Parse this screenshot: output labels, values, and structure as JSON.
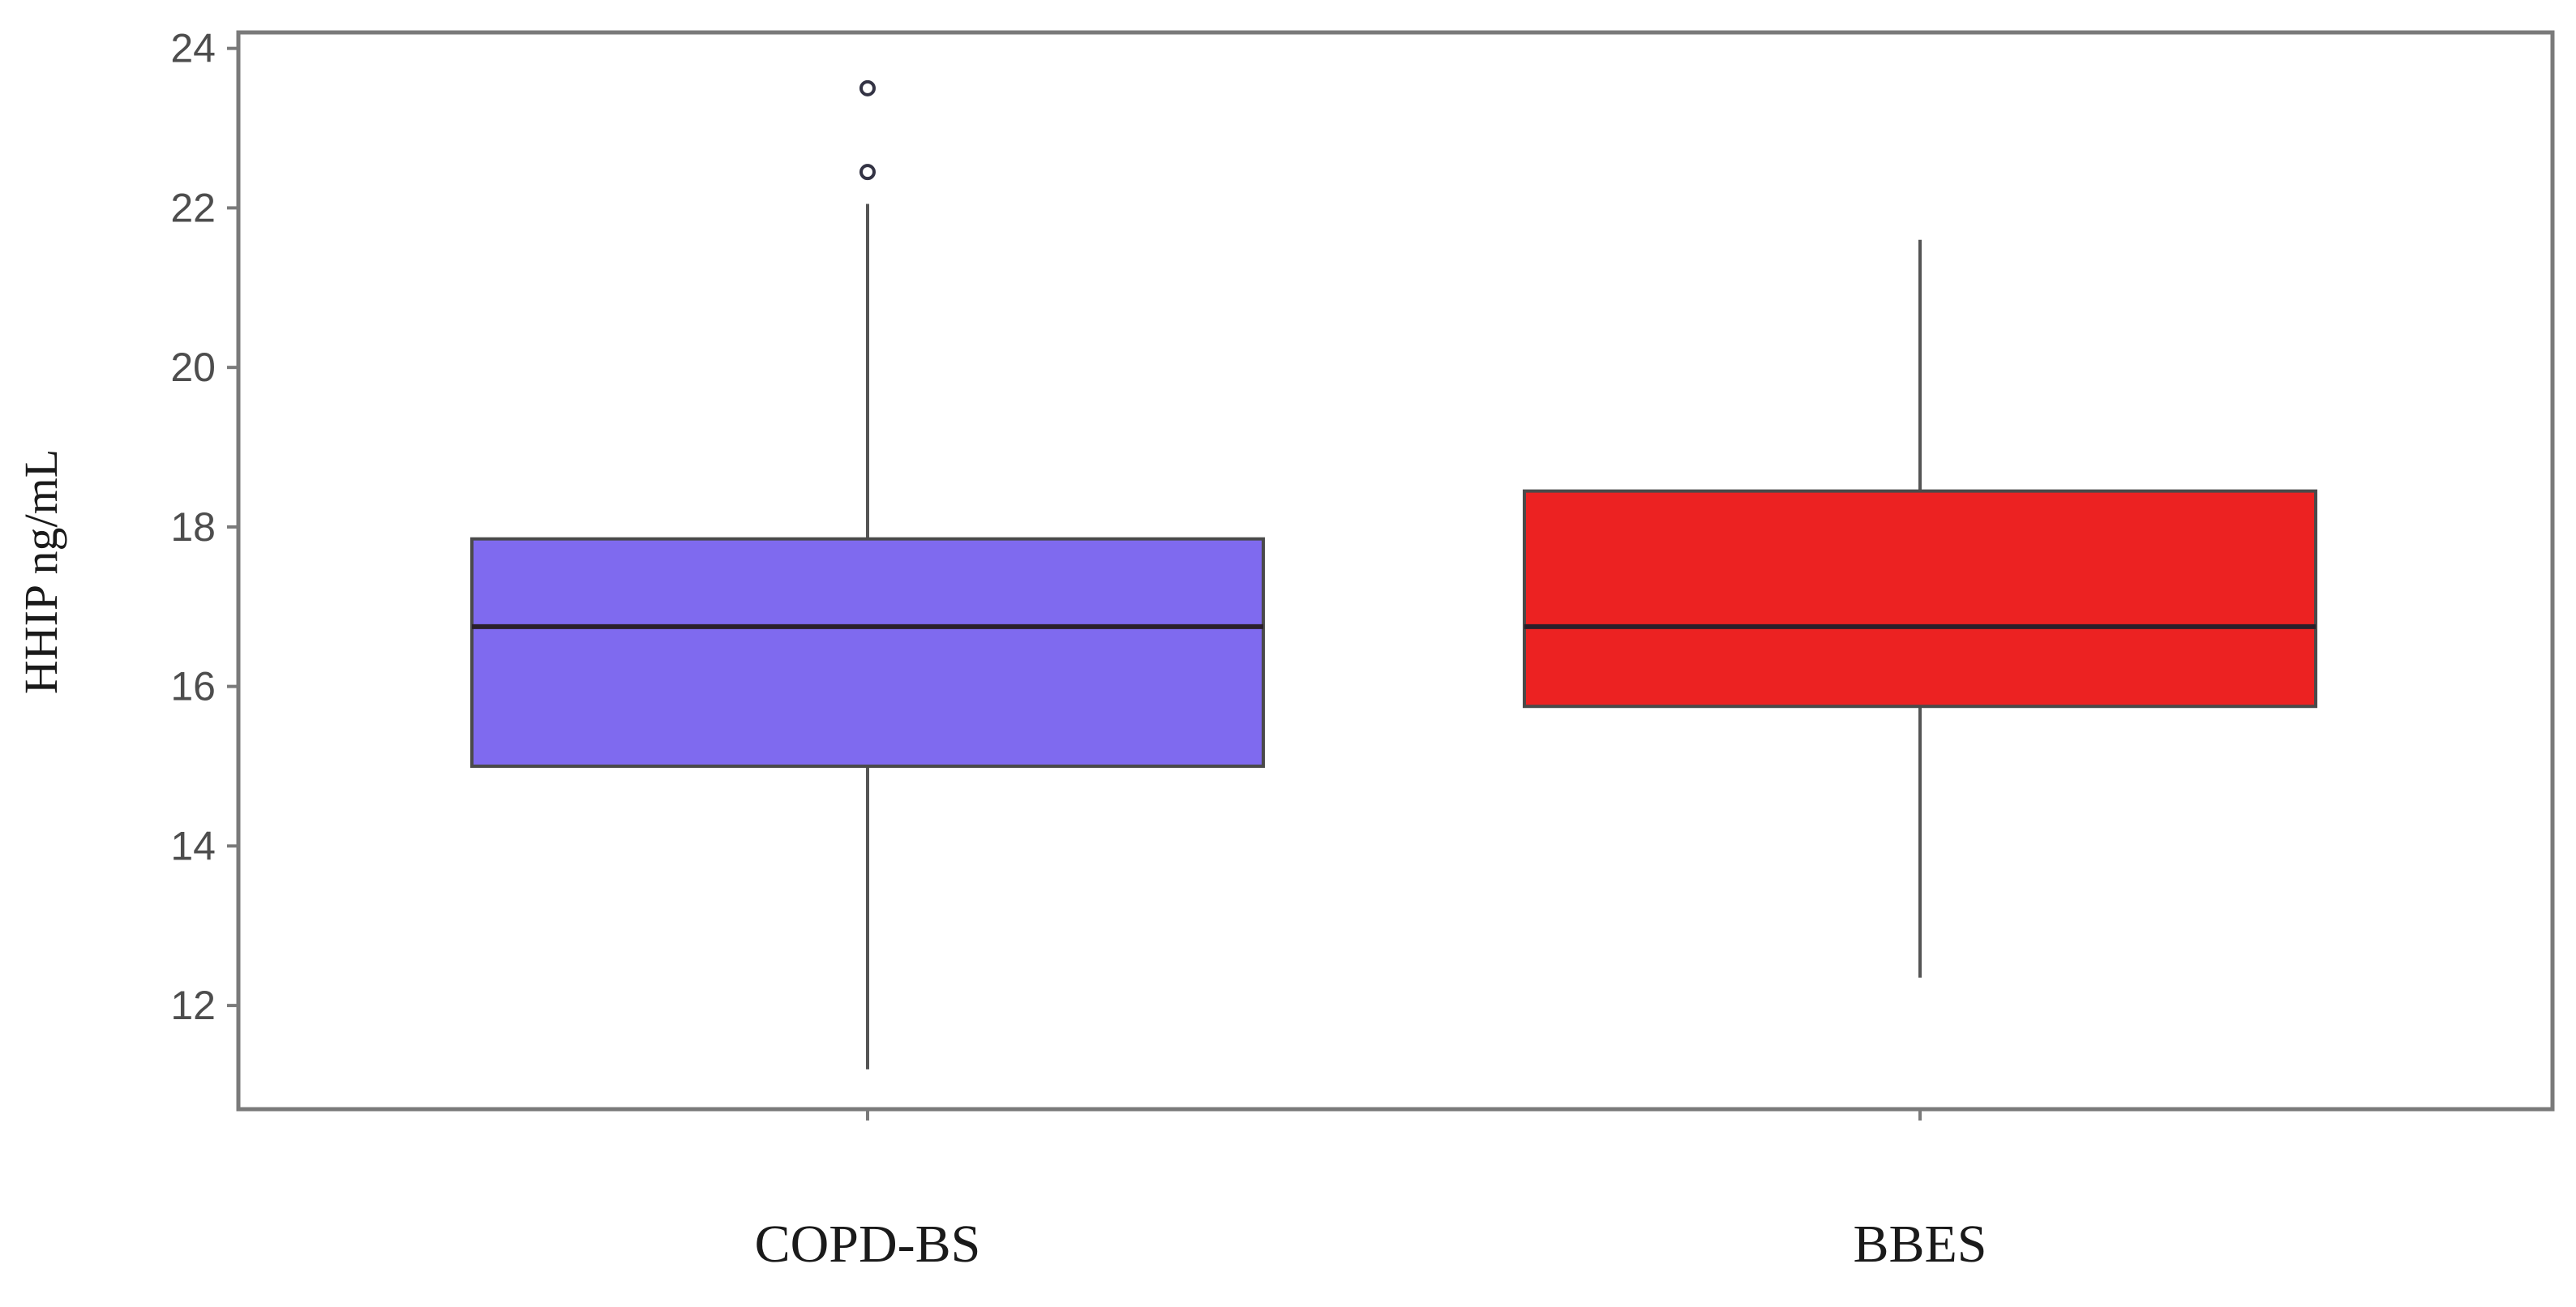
{
  "chart_data": {
    "type": "box",
    "title": "",
    "xlabel": "",
    "ylabel": "HHIP ng/mL",
    "ylim": [
      10.7,
      24.2
    ],
    "yticks": [
      12,
      14,
      16,
      18,
      20,
      22,
      24
    ],
    "grid": false,
    "categories": [
      "COPD-BS",
      "BBES"
    ],
    "boxes": [
      {
        "category": "COPD-BS",
        "whisker_low": 11.2,
        "q1": 15.0,
        "median": 16.75,
        "q3": 17.85,
        "whisker_high": 22.05,
        "outliers": [
          22.45,
          23.5
        ],
        "color": "#7f6aef"
      },
      {
        "category": "BBES",
        "whisker_low": 12.35,
        "q1": 15.75,
        "median": 16.75,
        "q3": 18.45,
        "whisker_high": 21.6,
        "outliers": [],
        "color": "#ec2222"
      }
    ]
  }
}
